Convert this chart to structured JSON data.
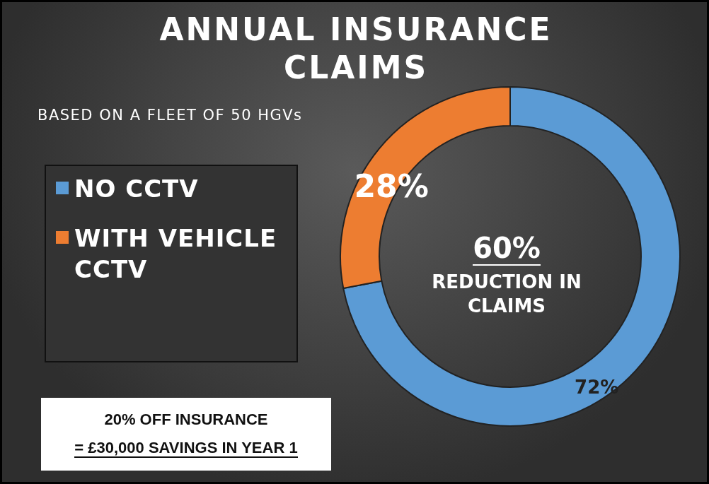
{
  "chart_data": {
    "type": "donut",
    "title": "ANNUAL INSURANCE CLAIMS",
    "subtitle": "BASED ON A FLEET OF 50 HGVs",
    "categories": [
      "NO CCTV",
      "WITH VEHICLE CCTV"
    ],
    "values": [
      72,
      28
    ],
    "colors": [
      "#5b9bd5",
      "#ed7d31"
    ],
    "value_labels": [
      "72%",
      "28%"
    ],
    "legend": "left",
    "annotations": [
      "60%",
      "REDUCTION IN CLAIMS",
      "20% OFF INSURANCE",
      "= £30,000 SAVINGS IN YEAR 1"
    ]
  }
}
